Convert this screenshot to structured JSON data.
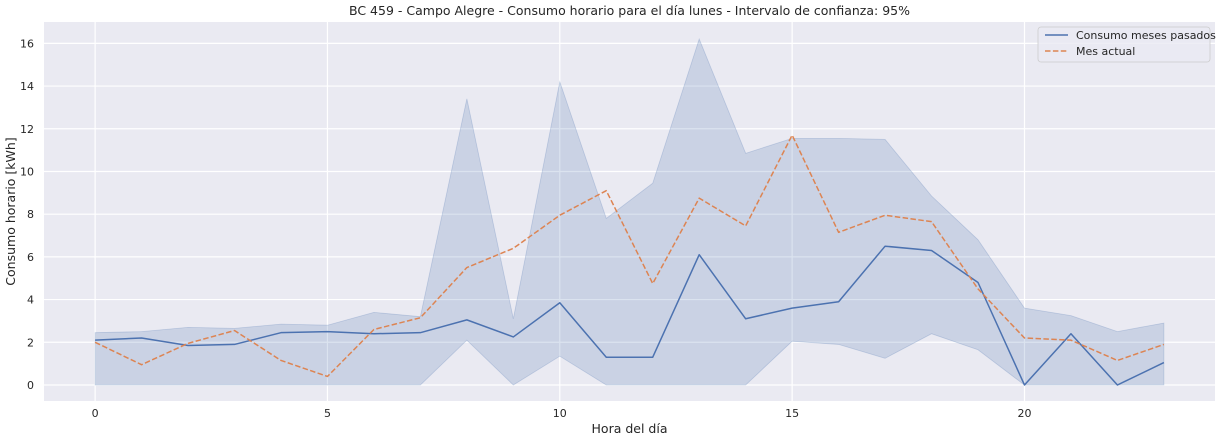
{
  "chart_data": {
    "type": "line",
    "title": "BC 459 - Campo Alegre - Consumo horario para el día lunes - Intervalo de confianza: 95%",
    "xlabel": "Hora del día",
    "ylabel": "Consumo horario [kWh]",
    "xlim": [
      -1.1,
      24.1
    ],
    "ylim": [
      -0.75,
      17
    ],
    "xticks": [
      0,
      5,
      10,
      15,
      20
    ],
    "yticks": [
      0,
      2,
      4,
      6,
      8,
      10,
      12,
      14,
      16
    ],
    "grid": true,
    "legend_position": "top-right",
    "x": [
      0,
      1,
      2,
      3,
      4,
      5,
      6,
      7,
      8,
      9,
      10,
      11,
      12,
      13,
      14,
      15,
      16,
      17,
      18,
      19,
      20,
      21,
      22,
      23
    ],
    "series": [
      {
        "name": "Consumo meses pasados",
        "color": "#4c72b0",
        "style": "solid",
        "values": [
          2.1,
          2.2,
          1.85,
          1.9,
          2.45,
          2.5,
          2.4,
          2.45,
          3.05,
          2.25,
          3.85,
          1.3,
          1.3,
          6.1,
          3.1,
          3.6,
          3.9,
          6.5,
          6.3,
          4.8,
          0.0,
          2.4,
          0.0,
          1.05
        ],
        "ci_lower": [
          0,
          0,
          0,
          0,
          0,
          0,
          0,
          0,
          2.1,
          0,
          1.35,
          0,
          0,
          0,
          0,
          2.05,
          1.9,
          1.25,
          2.4,
          1.65,
          0,
          0,
          0,
          0
        ],
        "ci_upper": [
          2.45,
          2.5,
          2.7,
          2.65,
          2.85,
          2.8,
          3.4,
          3.2,
          13.4,
          3.1,
          14.2,
          7.8,
          9.45,
          16.2,
          10.85,
          11.55,
          11.55,
          11.5,
          8.85,
          6.8,
          3.6,
          3.25,
          2.5,
          2.9
        ]
      },
      {
        "name": "Mes actual",
        "color": "#dd8452",
        "style": "dashed",
        "values": [
          2.0,
          0.95,
          1.95,
          2.55,
          1.15,
          0.4,
          2.6,
          3.15,
          5.5,
          6.4,
          7.95,
          9.1,
          4.75,
          8.75,
          7.45,
          11.7,
          7.15,
          7.95,
          7.65,
          4.5,
          2.2,
          2.1,
          1.15,
          1.9
        ]
      }
    ]
  }
}
